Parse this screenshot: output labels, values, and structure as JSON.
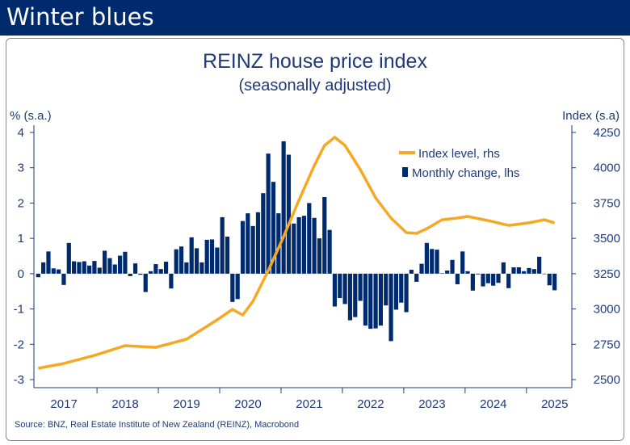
{
  "header": {
    "title": "Winter blues"
  },
  "chart_data": {
    "type": "bar+line",
    "title": "REINZ house price index",
    "subtitle": "(seasonally adjusted)",
    "ylabel_left": "% (s.a.)",
    "ylabel_right": "Index (s.a)",
    "ylim_left": [
      -3,
      4
    ],
    "ylim_right": [
      2500,
      4250
    ],
    "yticks_left": [
      "4",
      "3",
      "2",
      "1",
      "0",
      "-1",
      "-2",
      "-3"
    ],
    "yticks_right": [
      "4250",
      "4000",
      "3750",
      "3500",
      "3250",
      "3000",
      "2750",
      "2500"
    ],
    "x_tick_labels": [
      "2017",
      "2018",
      "2019",
      "2020",
      "2021",
      "2022",
      "2023",
      "2024",
      "2025"
    ],
    "x_start": "2017-01",
    "legend": [
      "Index level, rhs",
      "Monthly change, lhs"
    ],
    "legend_placement": "top-right",
    "series": [
      {
        "name": "Monthly change, lhs",
        "type": "bar",
        "axis": "left",
        "frequency": "monthly",
        "color": "#002a6e",
        "values": [
          -0.1,
          0.32,
          0.63,
          0.15,
          0.12,
          -0.32,
          0.87,
          0.35,
          0.33,
          0.35,
          0.23,
          0.36,
          0.17,
          0.65,
          0.44,
          0.26,
          0.51,
          0.62,
          -0.07,
          0.29,
          -0.03,
          -0.52,
          0.07,
          0.27,
          0.13,
          0.34,
          -0.42,
          0.69,
          0.77,
          0.32,
          1.03,
          0.72,
          0.32,
          0.96,
          0.97,
          0.74,
          1.6,
          1.05,
          -0.8,
          -0.72,
          1.49,
          1.71,
          1.35,
          1.74,
          2.28,
          3.4,
          2.6,
          1.71,
          3.75,
          3.37,
          1.42,
          1.6,
          1.64,
          2.0,
          1.58,
          1.0,
          2.17,
          1.24,
          -0.93,
          -0.69,
          -0.86,
          -1.32,
          -1.23,
          -0.77,
          -1.47,
          -1.56,
          -1.55,
          -1.47,
          -0.9,
          -1.91,
          -1.02,
          -0.82,
          -1.09,
          0.11,
          -0.23,
          0.28,
          0.87,
          0.7,
          0.68,
          0.01,
          0.09,
          0.39,
          -0.3,
          0.63,
          0.07,
          -0.48,
          -0.02,
          -0.36,
          -0.27,
          -0.34,
          -0.26,
          0.32,
          -0.41,
          0.18,
          0.18,
          0.07,
          0.16,
          0.13,
          0.48,
          0.0,
          -0.33,
          -0.47
        ]
      },
      {
        "name": "Index level, rhs",
        "type": "line",
        "axis": "right",
        "color": "#f7a823",
        "points_month_index": [
          0,
          5,
          11,
          17,
          23,
          29,
          35,
          38,
          40,
          42,
          45,
          48,
          51,
          54,
          56,
          58,
          60,
          63,
          66,
          69,
          72,
          74,
          76,
          79,
          82,
          84,
          88,
          92,
          96,
          99,
          101
        ],
        "values": [
          2580,
          2614,
          2671,
          2740,
          2728,
          2786,
          2923,
          2997,
          2957,
          3055,
          3272,
          3512,
          3770,
          4015,
          4158,
          4216,
          4158,
          3987,
          3787,
          3644,
          3541,
          3535,
          3569,
          3632,
          3644,
          3655,
          3626,
          3592,
          3610,
          3632,
          3610
        ]
      }
    ]
  },
  "source": "Source: BNZ, Real Estate Institute of New Zealand (REINZ), Macrobond"
}
